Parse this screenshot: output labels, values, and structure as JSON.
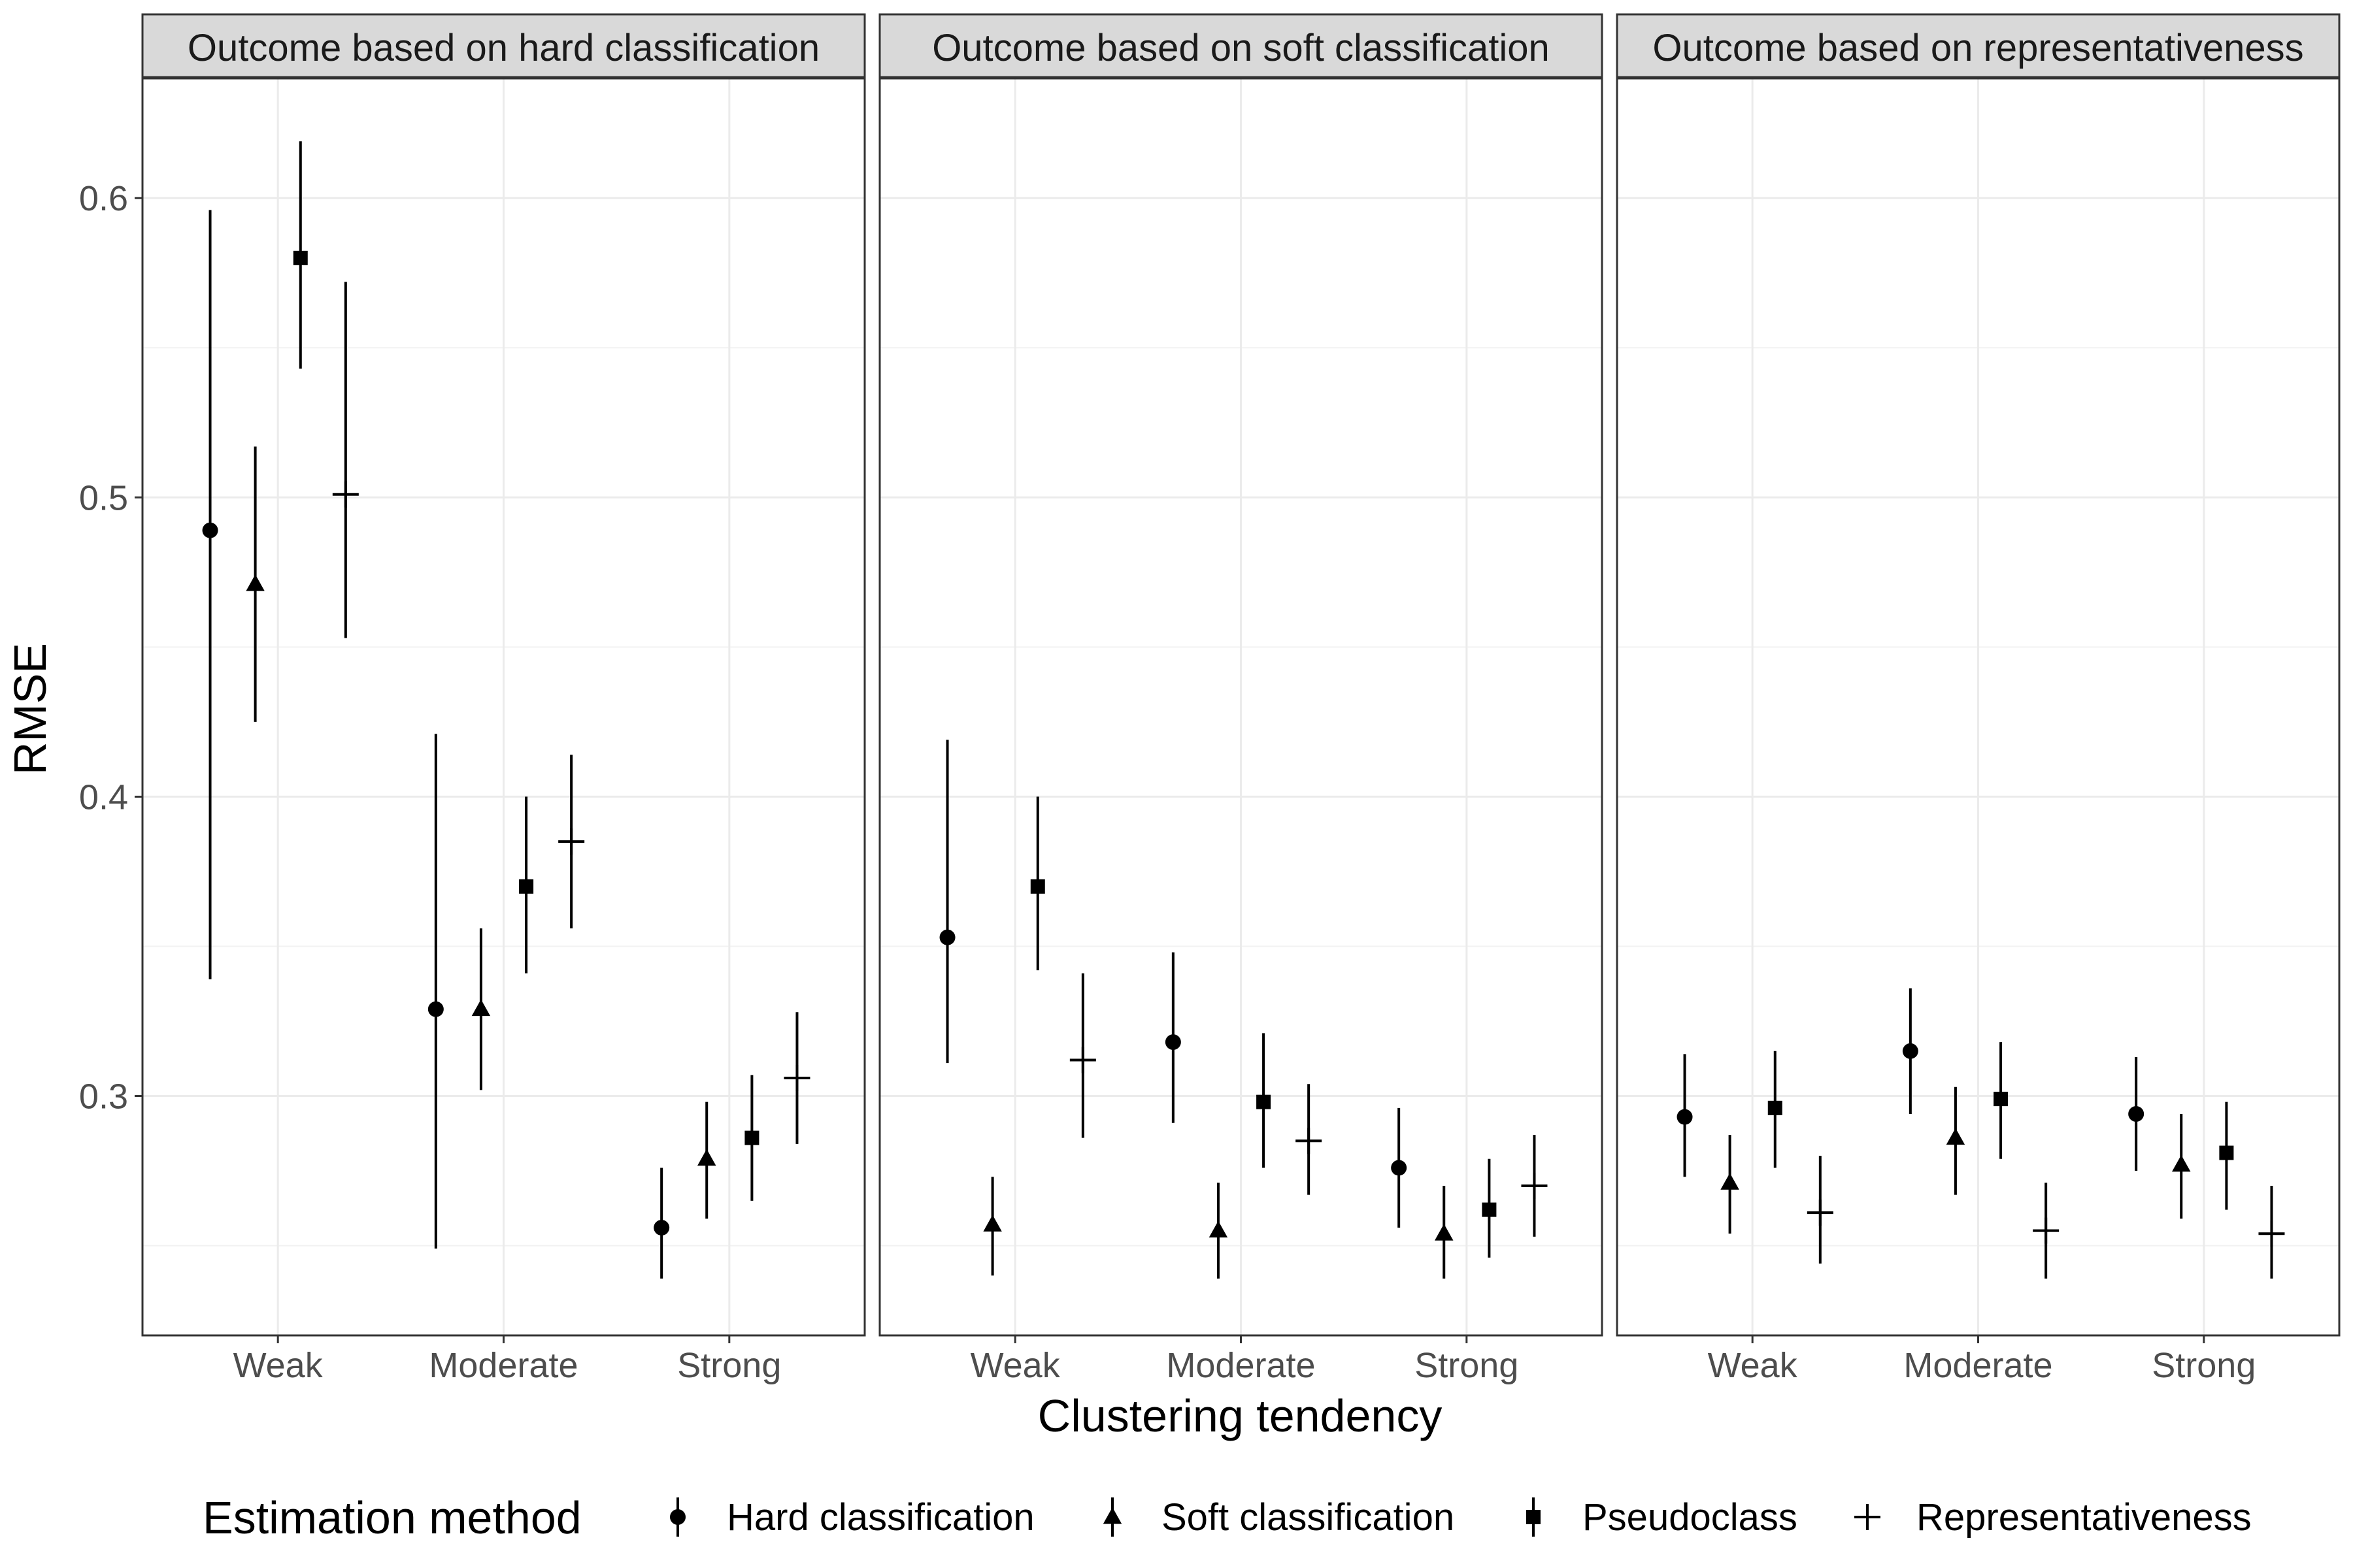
{
  "chart_data": {
    "type": "scatter",
    "panels": [
      "Outcome based on hard classification",
      "Outcome based on soft classification",
      "Outcome based on representativeness"
    ],
    "categories": [
      "Weak",
      "Moderate",
      "Strong"
    ],
    "xlabel": "Clustering tendency",
    "ylabel": "RMSE",
    "ylim": [
      0.22,
      0.64
    ],
    "yticks": [
      0.3,
      0.4,
      0.5,
      0.6
    ],
    "ytick_labels": [
      "0.3",
      "0.4",
      "0.5",
      "0.6"
    ],
    "grid": true,
    "legend": {
      "title": "Estimation method",
      "position": "bottom",
      "items": [
        "Hard classification",
        "Soft classification",
        "Pseudoclass",
        "Representativeness"
      ]
    },
    "series": [
      {
        "name": "Hard classification",
        "shape": "circle",
        "values": [
          [
            {
              "y": 0.489,
              "lo": 0.339,
              "hi": 0.596
            },
            {
              "y": 0.329,
              "lo": 0.249,
              "hi": 0.421
            },
            {
              "y": 0.256,
              "lo": 0.239,
              "hi": 0.276
            }
          ],
          [
            {
              "y": 0.353,
              "lo": 0.311,
              "hi": 0.419
            },
            {
              "y": 0.318,
              "lo": 0.291,
              "hi": 0.348
            },
            {
              "y": 0.276,
              "lo": 0.256,
              "hi": 0.296
            }
          ],
          [
            {
              "y": 0.293,
              "lo": 0.273,
              "hi": 0.314
            },
            {
              "y": 0.315,
              "lo": 0.294,
              "hi": 0.336
            },
            {
              "y": 0.294,
              "lo": 0.275,
              "hi": 0.313
            }
          ]
        ]
      },
      {
        "name": "Soft classification",
        "shape": "triangle",
        "values": [
          [
            {
              "y": 0.471,
              "lo": 0.425,
              "hi": 0.517
            },
            {
              "y": 0.329,
              "lo": 0.302,
              "hi": 0.356
            },
            {
              "y": 0.279,
              "lo": 0.259,
              "hi": 0.298
            }
          ],
          [
            {
              "y": 0.257,
              "lo": 0.24,
              "hi": 0.273
            },
            {
              "y": 0.255,
              "lo": 0.239,
              "hi": 0.271
            },
            {
              "y": 0.254,
              "lo": 0.239,
              "hi": 0.27
            }
          ],
          [
            {
              "y": 0.271,
              "lo": 0.254,
              "hi": 0.287
            },
            {
              "y": 0.286,
              "lo": 0.267,
              "hi": 0.303
            },
            {
              "y": 0.277,
              "lo": 0.259,
              "hi": 0.294
            }
          ]
        ]
      },
      {
        "name": "Pseudoclass",
        "shape": "square",
        "values": [
          [
            {
              "y": 0.58,
              "lo": 0.543,
              "hi": 0.619
            },
            {
              "y": 0.37,
              "lo": 0.341,
              "hi": 0.4
            },
            {
              "y": 0.286,
              "lo": 0.265,
              "hi": 0.307
            }
          ],
          [
            {
              "y": 0.37,
              "lo": 0.342,
              "hi": 0.4
            },
            {
              "y": 0.298,
              "lo": 0.276,
              "hi": 0.321
            },
            {
              "y": 0.262,
              "lo": 0.246,
              "hi": 0.279
            }
          ],
          [
            {
              "y": 0.296,
              "lo": 0.276,
              "hi": 0.315
            },
            {
              "y": 0.299,
              "lo": 0.279,
              "hi": 0.318
            },
            {
              "y": 0.281,
              "lo": 0.262,
              "hi": 0.298
            }
          ]
        ]
      },
      {
        "name": "Representativeness",
        "shape": "plus",
        "values": [
          [
            {
              "y": 0.501,
              "lo": 0.453,
              "hi": 0.572
            },
            {
              "y": 0.385,
              "lo": 0.356,
              "hi": 0.414
            },
            {
              "y": 0.306,
              "lo": 0.284,
              "hi": 0.328
            }
          ],
          [
            {
              "y": 0.312,
              "lo": 0.286,
              "hi": 0.341
            },
            {
              "y": 0.285,
              "lo": 0.267,
              "hi": 0.304
            },
            {
              "y": 0.27,
              "lo": 0.253,
              "hi": 0.287
            }
          ],
          [
            {
              "y": 0.261,
              "lo": 0.244,
              "hi": 0.28
            },
            {
              "y": 0.255,
              "lo": 0.239,
              "hi": 0.271
            },
            {
              "y": 0.254,
              "lo": 0.239,
              "hi": 0.27
            }
          ]
        ]
      }
    ]
  }
}
